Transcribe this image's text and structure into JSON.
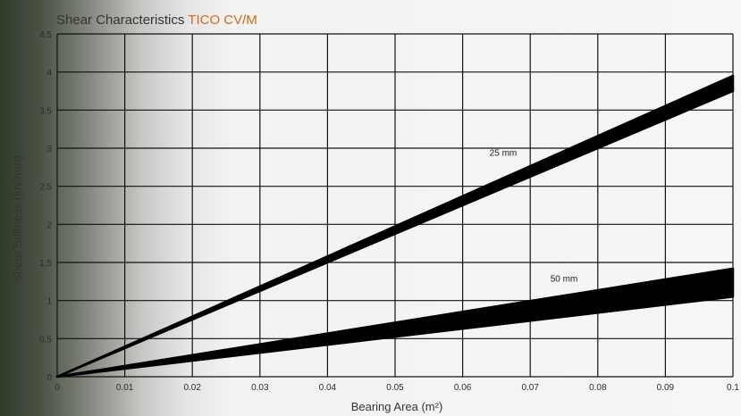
{
  "chart_data": {
    "type": "area",
    "title": "Shear Characteristics",
    "subtitle": "TICO CV/M",
    "xlabel": "Bearing Area (m²)",
    "ylabel": "Shear Stiffness (kN/mm)",
    "xlim": [
      0,
      0.1
    ],
    "ylim": [
      0,
      4.5
    ],
    "x_ticks": [
      "0",
      "0.01",
      "0.02",
      "0.03",
      "0.04",
      "0.05",
      "0.06",
      "0.07",
      "0.08",
      "0.09",
      "0.1"
    ],
    "y_ticks": [
      "0",
      "0.5",
      "1",
      "1.5",
      "2",
      "2.5",
      "3",
      "3.5",
      "4",
      "4.5"
    ],
    "grid": true,
    "series": [
      {
        "name": "25 mm",
        "x": [
          0,
          0.1
        ],
        "lower": [
          0,
          3.75
        ],
        "upper": [
          0,
          3.95
        ],
        "label_at": [
          0.066,
          2.9
        ]
      },
      {
        "name": "50 mm",
        "x": [
          0,
          0.1
        ],
        "lower": [
          0,
          1.05
        ],
        "upper": [
          0,
          1.42
        ],
        "label_at": [
          0.075,
          1.25
        ]
      }
    ],
    "band_color": "#000000",
    "accent_color": "#d9661f"
  }
}
